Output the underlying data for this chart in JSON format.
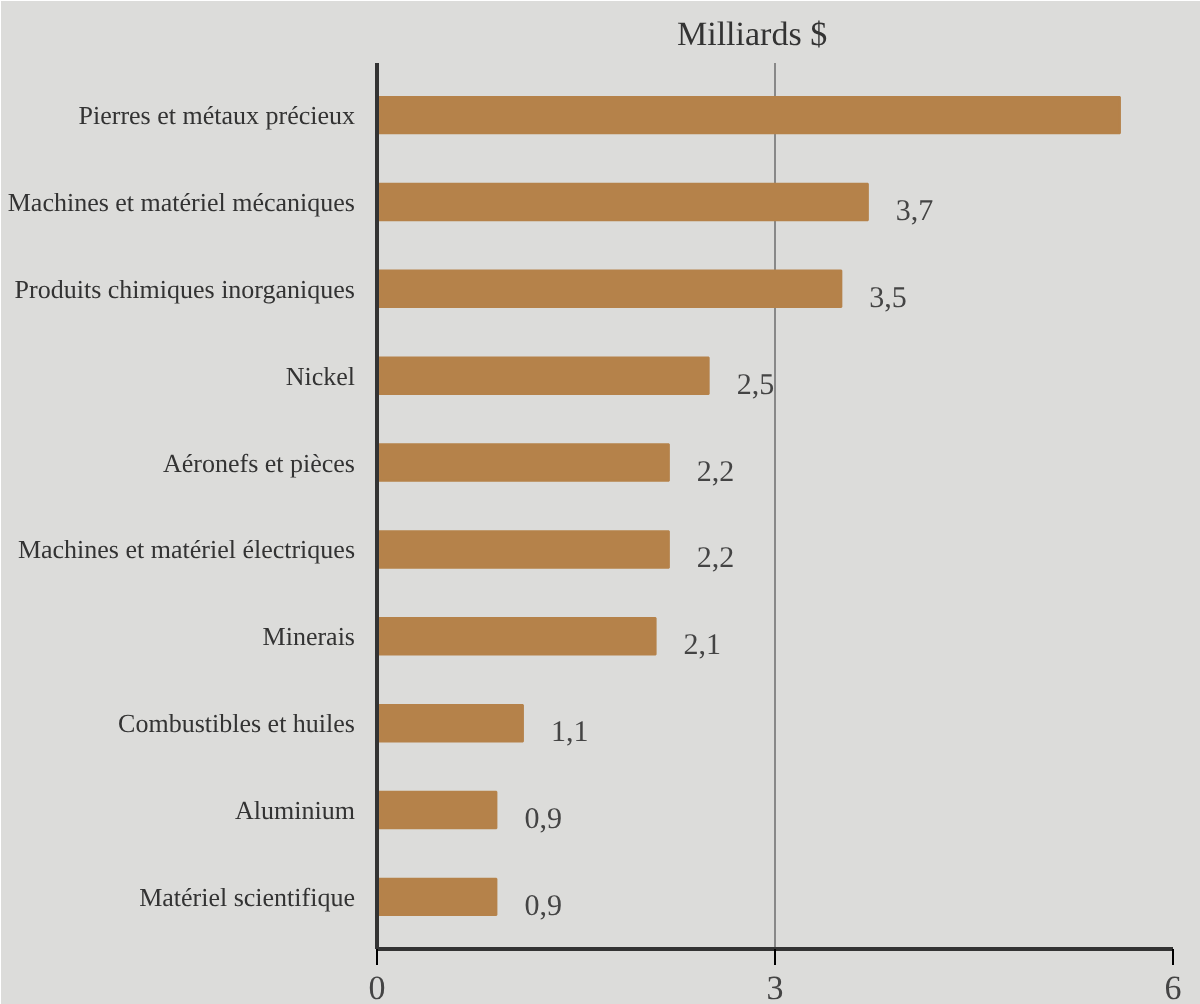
{
  "chart_data": {
    "type": "bar",
    "orientation": "horizontal",
    "title": "Milliards $",
    "categories": [
      "Pierres et métaux précieux",
      "Machines et matériel mécaniques",
      "Produits chimiques inorganiques",
      "Nickel",
      "Aéronefs et pièces",
      "Machines et matériel électriques",
      "Minerais",
      "Combustibles et huiles",
      "Aluminium",
      "Matériel scientifique"
    ],
    "values": [
      5.6,
      3.7,
      3.5,
      2.5,
      2.2,
      2.2,
      2.1,
      1.1,
      0.9,
      0.9
    ],
    "value_labels": [
      null,
      "3,7",
      "3,5",
      "2,5",
      "2,2",
      "2,2",
      "2,1",
      "1,1",
      "0,9",
      "0,9"
    ],
    "color": "#b5824a",
    "xlim": [
      0,
      6
    ],
    "xticks": [
      0,
      3,
      6
    ],
    "grid": "x"
  }
}
